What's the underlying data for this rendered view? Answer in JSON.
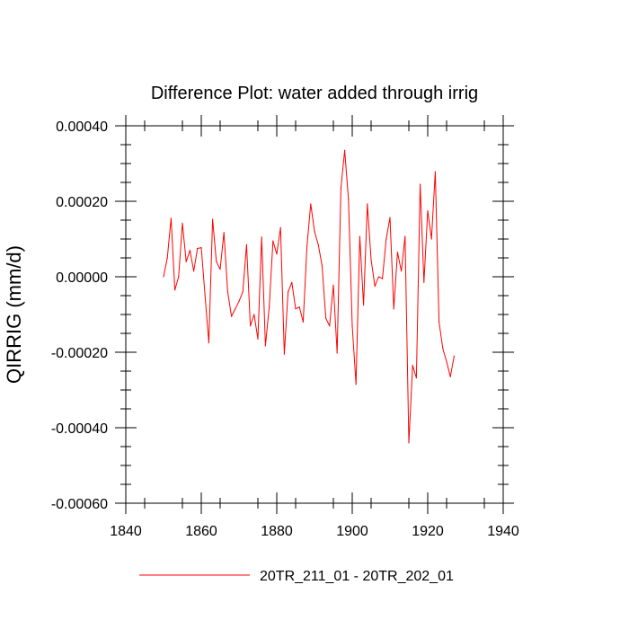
{
  "chart_data": {
    "type": "line",
    "title": "Difference Plot: water added through irrig",
    "xlabel": "",
    "ylabel": "QIRRIG  (mm/d)",
    "xlim": [
      1840,
      1940
    ],
    "ylim": [
      -0.0006,
      0.0004
    ],
    "xticks": [
      1840,
      1860,
      1880,
      1900,
      1920,
      1940
    ],
    "xtick_labels": [
      "1840",
      "1860",
      "1880",
      "1900",
      "1920",
      "1940"
    ],
    "yticks": [
      -0.0006,
      -0.0004,
      -0.0002,
      0.0,
      0.0002,
      0.0004
    ],
    "ytick_labels": [
      "-0.00060",
      "-0.00040",
      "-0.00020",
      "0.00000",
      "0.00020",
      "0.00040"
    ],
    "grid": false,
    "legend_position": "bottom-center",
    "series": [
      {
        "name": "20TR_211_01 - 20TR_202_01",
        "color": "#ff0000",
        "x": [
          1850,
          1851,
          1852,
          1853,
          1854,
          1855,
          1856,
          1857,
          1858,
          1859,
          1860,
          1861,
          1862,
          1863,
          1864,
          1865,
          1866,
          1867,
          1868,
          1869,
          1870,
          1871,
          1872,
          1873,
          1874,
          1875,
          1876,
          1877,
          1878,
          1879,
          1880,
          1881,
          1882,
          1883,
          1884,
          1885,
          1886,
          1887,
          1888,
          1889,
          1890,
          1891,
          1892,
          1893,
          1894,
          1895,
          1896,
          1897,
          1898,
          1899,
          1900,
          1901,
          1902,
          1903,
          1904,
          1905,
          1906,
          1907,
          1908,
          1909,
          1910,
          1911,
          1912,
          1913,
          1914,
          1915,
          1916,
          1917,
          1918,
          1919,
          1920,
          1921,
          1922,
          1923,
          1924,
          1925,
          1926,
          1927
        ],
        "values": [
          0.0,
          5e-05,
          0.000155,
          -3.5e-05,
          0.0,
          0.000142,
          4e-05,
          7e-05,
          1.5e-05,
          7.5e-05,
          7.7e-05,
          -5e-05,
          -0.000175,
          0.000152,
          4e-05,
          2e-05,
          0.000117,
          -4e-05,
          -0.000105,
          -8.5e-05,
          -6.5e-05,
          -4e-05,
          8.5e-05,
          -0.00013,
          -0.0001,
          -0.000165,
          0.000105,
          -0.000183,
          -8e-05,
          9.5e-05,
          6e-05,
          0.00013,
          -0.000205,
          -4e-05,
          -1.5e-05,
          -8.5e-05,
          -8e-05,
          -0.00012,
          8e-05,
          0.000193,
          0.00012,
          8.5e-05,
          3e-05,
          -0.00011,
          -0.00013,
          -2.2e-05,
          -0.000202,
          0.000235,
          0.000335,
          0.000205,
          -0.00013,
          -0.000285,
          0.000107,
          -7.5e-05,
          0.000193,
          4.5e-05,
          -2.5e-05,
          0.0,
          -5e-06,
          0.0001,
          0.000157,
          -8.5e-05,
          6.5e-05,
          1.5e-05,
          0.000107,
          -0.00044,
          -0.000235,
          -0.000268,
          0.000245,
          -1.5e-05,
          0.000175,
          0.0001,
          0.000278,
          -0.00012,
          -0.00019,
          -0.000225,
          -0.000265,
          -0.00021
        ]
      }
    ]
  }
}
